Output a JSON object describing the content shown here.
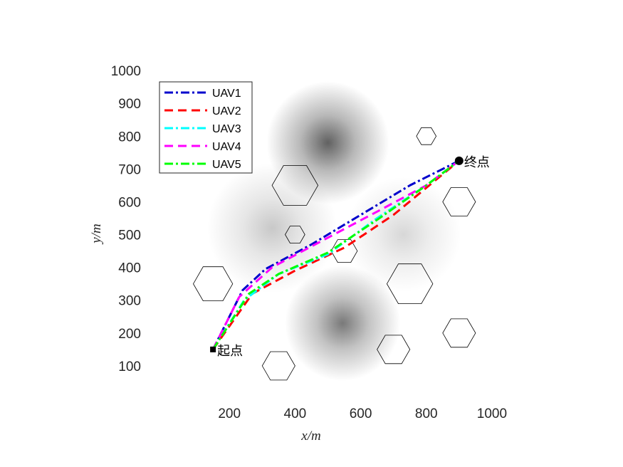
{
  "chart_data": {
    "type": "line",
    "xlabel": "x/m",
    "ylabel": "y/m",
    "xlim": [
      0,
      1100
    ],
    "ylim": [
      0,
      1100
    ],
    "xticks": [
      200,
      400,
      600,
      800,
      1000
    ],
    "yticks": [
      100,
      200,
      300,
      400,
      500,
      600,
      700,
      800,
      900,
      1000
    ],
    "grid": false,
    "legend_position": "top-left",
    "terrain_peaks": [
      {
        "x": 500,
        "y": 780,
        "height": 1.0,
        "spread": 85
      },
      {
        "x": 545,
        "y": 230,
        "height": 0.85,
        "spread": 80
      },
      {
        "x": 330,
        "y": 520,
        "height": 0.35,
        "spread": 90
      },
      {
        "x": 730,
        "y": 500,
        "height": 0.25,
        "spread": 80
      }
    ],
    "obstacles": [
      {
        "x": 400,
        "y": 650,
        "r": 70
      },
      {
        "x": 800,
        "y": 800,
        "r": 30
      },
      {
        "x": 900,
        "y": 600,
        "r": 50
      },
      {
        "x": 400,
        "y": 500,
        "r": 30
      },
      {
        "x": 550,
        "y": 450,
        "r": 40
      },
      {
        "x": 150,
        "y": 350,
        "r": 60
      },
      {
        "x": 750,
        "y": 350,
        "r": 70
      },
      {
        "x": 900,
        "y": 200,
        "r": 50
      },
      {
        "x": 700,
        "y": 150,
        "r": 50
      },
      {
        "x": 350,
        "y": 100,
        "r": 50
      }
    ],
    "series": [
      {
        "name": "UAV1",
        "color": "#0000cc",
        "dash": "dashdot",
        "x": [
          150,
          240,
          310,
          450,
          600,
          750,
          900
        ],
        "y": [
          150,
          330,
          395,
          470,
          560,
          650,
          725
        ]
      },
      {
        "name": "UAV2",
        "color": "#ff0000",
        "dash": "dashed",
        "x": [
          150,
          270,
          400,
          550,
          700,
          900
        ],
        "y": [
          150,
          320,
          390,
          460,
          560,
          725
        ]
      },
      {
        "name": "UAV3",
        "color": "#00ffff",
        "dash": "dashdot",
        "x": [
          150,
          245,
          350,
          500,
          650,
          800,
          900
        ],
        "y": [
          150,
          300,
          380,
          440,
          550,
          650,
          725
        ]
      },
      {
        "name": "UAV4",
        "color": "#ff00ff",
        "dash": "dashed",
        "x": [
          150,
          230,
          330,
          480,
          650,
          800,
          900
        ],
        "y": [
          150,
          310,
          400,
          480,
          570,
          650,
          725
        ]
      },
      {
        "name": "UAV5",
        "color": "#00ff00",
        "dash": "dashdot",
        "x": [
          150,
          260,
          350,
          500,
          650,
          800,
          900
        ],
        "y": [
          150,
          320,
          380,
          445,
          545,
          650,
          725
        ]
      }
    ],
    "start": {
      "x": 150,
      "y": 150,
      "label": "起点"
    },
    "goal": {
      "x": 900,
      "y": 725,
      "label": "终点"
    }
  }
}
